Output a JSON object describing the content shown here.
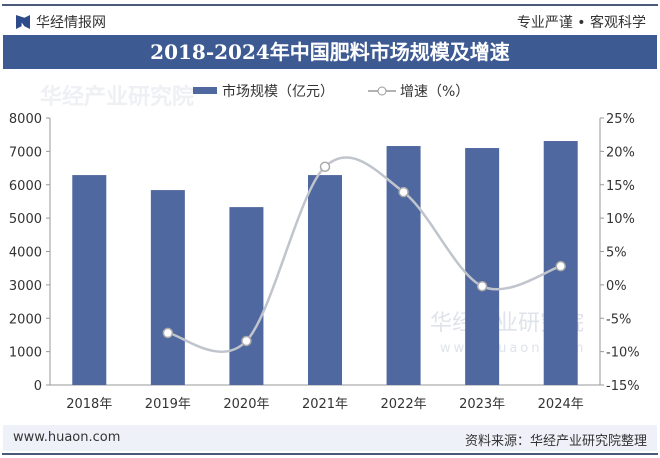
{
  "header": {
    "brand": "华经情报网",
    "slogan": "专业严谨 • 客观科学"
  },
  "footer": {
    "website": "www.huaon.com",
    "source": "资料来源：华经产业研究院整理"
  },
  "watermark": {
    "text": "华经产业研究院",
    "url": "www.huaon.com"
  },
  "colors": {
    "bar": "#5068a0",
    "line": "#c0c4cc",
    "title_bg": "#3d5a92"
  },
  "chart_data": {
    "type": "bar+line",
    "title": "2018-2024年中国肥料市场规模及增速",
    "categories": [
      "2018年",
      "2019年",
      "2020年",
      "2021年",
      "2022年",
      "2023年",
      "2024年"
    ],
    "series": [
      {
        "name": "市场规模（亿元）",
        "type": "bar",
        "axis": "left",
        "values": [
          6290,
          5840,
          5330,
          6290,
          7160,
          7100,
          7310
        ]
      },
      {
        "name": "增速（%）",
        "type": "line",
        "axis": "right",
        "values": [
          null,
          -7.2,
          -8.4,
          17.7,
          13.9,
          -0.2,
          2.8
        ]
      }
    ],
    "y_left": {
      "range": [
        0,
        8000
      ],
      "ticks": [
        "0",
        "1000",
        "2000",
        "3000",
        "4000",
        "5000",
        "6000",
        "7000",
        "8000"
      ]
    },
    "y_right": {
      "range": [
        -15,
        25
      ],
      "ticks": [
        "-15%",
        "-10%",
        "-5%",
        "0%",
        "5%",
        "10%",
        "15%",
        "20%",
        "25%"
      ]
    },
    "legend": "top-center",
    "grid": false
  }
}
